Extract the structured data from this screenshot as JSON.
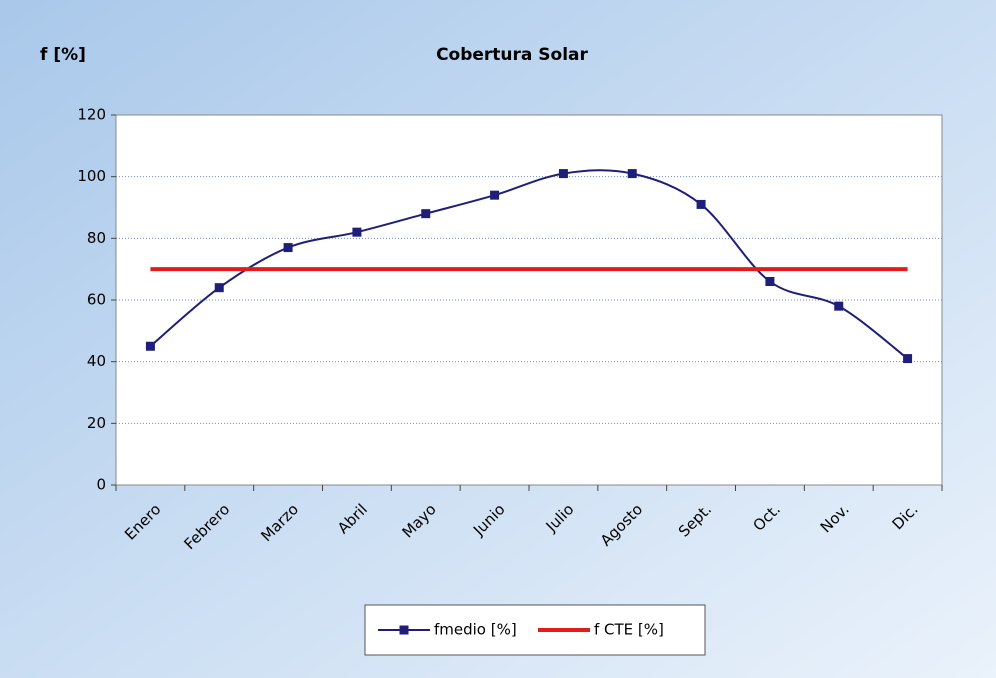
{
  "chart_data": {
    "type": "line",
    "title": "Cobertura Solar",
    "y_label": "f [%]",
    "categories": [
      "Enero",
      "Febrero",
      "Marzo",
      "Abril",
      "Mayo",
      "Junio",
      "Julio",
      "Agosto",
      "Sept.",
      "Oct.",
      "Nov.",
      "Dic."
    ],
    "series": [
      {
        "name": "fmedio [%]",
        "color": "#1f1f7a",
        "smooth": true,
        "marker": "square",
        "values": [
          45,
          64,
          77,
          82,
          88,
          94,
          101,
          101,
          91,
          66,
          58,
          41
        ]
      },
      {
        "name": "f CTE [%]",
        "color": "#e21c1c",
        "smooth": false,
        "marker": "none",
        "values": [
          70,
          70,
          70,
          70,
          70,
          70,
          70,
          70,
          70,
          70,
          70,
          70
        ]
      }
    ],
    "ylim": [
      0,
      120
    ],
    "yticks": [
      0,
      20,
      40,
      60,
      80,
      100,
      120
    ],
    "grid": true,
    "legend": "bottom"
  }
}
